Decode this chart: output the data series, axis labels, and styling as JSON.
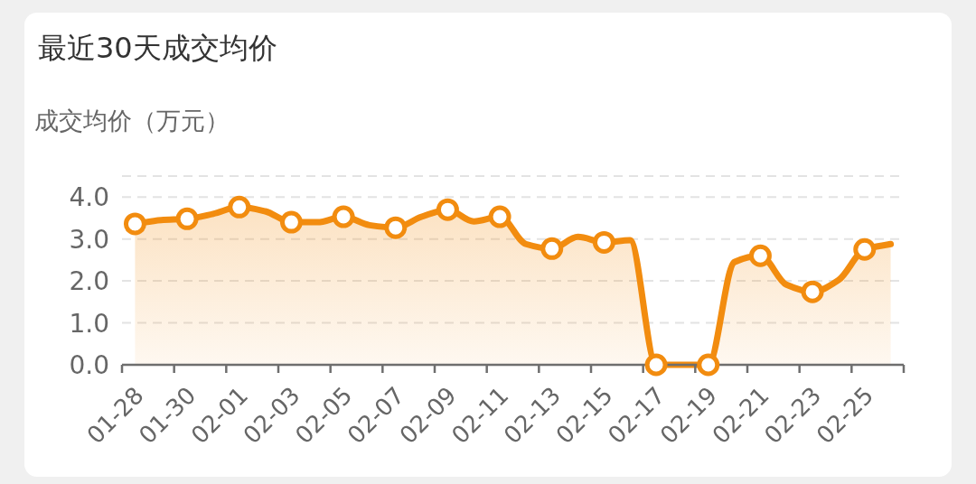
{
  "chart_data": {
    "type": "area",
    "title": "最近30天成交均价",
    "ylabel": "成交均价（万元）",
    "categories": [
      "01-28",
      null,
      "01-30",
      null,
      "02-01",
      null,
      "02-03",
      null,
      "02-05",
      null,
      "02-07",
      null,
      "02-09",
      null,
      "02-11",
      null,
      "02-13",
      null,
      "02-15",
      null,
      "02-17",
      null,
      "02-19",
      null,
      "02-21",
      null,
      "02-23",
      null,
      "02-25",
      null
    ],
    "series": [
      {
        "color": "#f28c0f",
        "values": [
          3.36,
          3.45,
          3.48,
          3.6,
          3.76,
          3.66,
          3.4,
          3.4,
          3.53,
          3.33,
          3.27,
          3.53,
          3.7,
          3.42,
          3.53,
          2.88,
          2.77,
          3.05,
          2.92,
          2.97,
          0,
          0,
          0,
          2.45,
          2.6,
          1.91,
          1.74,
          2.02,
          2.75,
          2.88
        ]
      }
    ],
    "ylim": [
      0,
      4.5
    ],
    "yticks": [
      {
        "value": 0,
        "label": "0.0"
      },
      {
        "value": 1,
        "label": "1.0"
      },
      {
        "value": 2,
        "label": "2.0"
      },
      {
        "value": 3,
        "label": "3.0"
      },
      {
        "value": 4,
        "label": "4.0"
      },
      {
        "value": 4.5,
        "label": null
      }
    ],
    "grid": "y",
    "marker": "circle"
  }
}
